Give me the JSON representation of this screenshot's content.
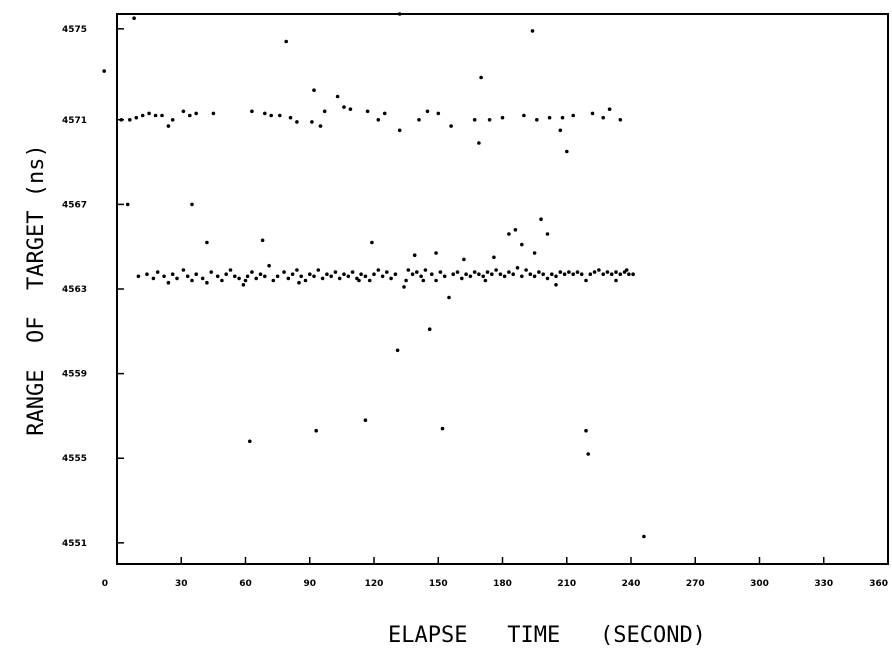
{
  "chart_data": {
    "type": "scatter",
    "title": "",
    "xlabel": "ELAPSE   TIME   (SECOND)",
    "ylabel": "RANGE  OF  TARGET (ns)",
    "xlim": [
      0,
      360
    ],
    "ylim": [
      4550,
      4576
    ],
    "grid": false,
    "x_ticks": [
      0,
      30,
      60,
      90,
      120,
      150,
      180,
      210,
      240,
      270,
      300,
      330,
      360
    ],
    "x_tick_labels": [
      "0",
      "30",
      "60",
      "90",
      "120",
      "150",
      "180",
      "210",
      "240",
      "270",
      "300",
      "330",
      "360"
    ],
    "y_ticks": [
      4575.3,
      4571,
      4567,
      4563,
      4559,
      4555,
      4551
    ],
    "y_tick_labels": [
      "4575",
      "4571",
      "4567",
      "4563",
      "4559",
      "4555",
      "4551"
    ],
    "series": [
      {
        "values": [
          [
            -6,
            4573.3
          ],
          [
            8,
            4575.8
          ],
          [
            31,
            4571.4
          ],
          [
            79,
            4574.7
          ],
          [
            92,
            4572.4
          ],
          [
            103,
            4572.1
          ],
          [
            132,
            4576.0
          ],
          [
            170,
            4573.0
          ],
          [
            194,
            4575.2
          ],
          [
            2,
            4571.0
          ],
          [
            6,
            4571.0
          ],
          [
            9,
            4571.1
          ],
          [
            12,
            4571.2
          ],
          [
            15,
            4571.3
          ],
          [
            18,
            4571.2
          ],
          [
            21,
            4571.2
          ],
          [
            24,
            4570.7
          ],
          [
            26,
            4571.0
          ],
          [
            34,
            4571.2
          ],
          [
            37,
            4571.3
          ],
          [
            45,
            4571.3
          ],
          [
            63,
            4571.4
          ],
          [
            69,
            4571.3
          ],
          [
            72,
            4571.2
          ],
          [
            76,
            4571.2
          ],
          [
            81,
            4571.1
          ],
          [
            84,
            4570.9
          ],
          [
            91,
            4570.9
          ],
          [
            95,
            4570.7
          ],
          [
            97,
            4571.4
          ],
          [
            106,
            4571.6
          ],
          [
            109,
            4571.5
          ],
          [
            117,
            4571.4
          ],
          [
            122,
            4571.0
          ],
          [
            125,
            4571.3
          ],
          [
            132,
            4570.5
          ],
          [
            141,
            4571.0
          ],
          [
            145,
            4571.4
          ],
          [
            150,
            4571.3
          ],
          [
            156,
            4570.7
          ],
          [
            167,
            4571.0
          ],
          [
            169,
            4569.9
          ],
          [
            174,
            4571.0
          ],
          [
            180,
            4571.1
          ],
          [
            190,
            4571.2
          ],
          [
            196,
            4571.0
          ],
          [
            202,
            4571.1
          ],
          [
            208,
            4571.1
          ],
          [
            213,
            4571.2
          ],
          [
            222,
            4571.3
          ],
          [
            227,
            4571.1
          ],
          [
            230,
            4571.5
          ],
          [
            235,
            4571.0
          ],
          [
            207,
            4570.5
          ],
          [
            210,
            4569.5
          ],
          [
            5,
            4567.0
          ],
          [
            35,
            4567.0
          ],
          [
            42,
            4565.2
          ],
          [
            68,
            4565.3
          ],
          [
            119,
            4565.2
          ],
          [
            139,
            4564.6
          ],
          [
            149,
            4564.7
          ],
          [
            162,
            4564.4
          ],
          [
            176,
            4564.5
          ],
          [
            183,
            4565.6
          ],
          [
            186,
            4565.8
          ],
          [
            189,
            4565.1
          ],
          [
            195,
            4564.7
          ],
          [
            198,
            4566.3
          ],
          [
            201,
            4565.6
          ],
          [
            135,
            4563.4
          ],
          [
            155,
            4562.6
          ],
          [
            146,
            4561.1
          ],
          [
            131,
            4560.1
          ],
          [
            62,
            4555.8
          ],
          [
            93,
            4556.3
          ],
          [
            116,
            4556.8
          ],
          [
            152,
            4556.4
          ],
          [
            219,
            4556.3
          ],
          [
            220,
            4555.2
          ],
          [
            246,
            4551.3
          ]
        ]
      },
      {
        "values": [
          [
            10,
            4563.6
          ],
          [
            14,
            4563.7
          ],
          [
            17,
            4563.5
          ],
          [
            19,
            4563.8
          ],
          [
            22,
            4563.6
          ],
          [
            24,
            4563.3
          ],
          [
            26,
            4563.7
          ],
          [
            28,
            4563.5
          ],
          [
            31,
            4563.9
          ],
          [
            33,
            4563.6
          ],
          [
            35,
            4563.4
          ],
          [
            37,
            4563.7
          ],
          [
            40,
            4563.5
          ],
          [
            42,
            4563.3
          ],
          [
            44,
            4563.8
          ],
          [
            47,
            4563.6
          ],
          [
            49,
            4563.4
          ],
          [
            51,
            4563.7
          ],
          [
            53,
            4563.9
          ],
          [
            55,
            4563.6
          ],
          [
            57,
            4563.5
          ],
          [
            59,
            4563.2
          ],
          [
            61,
            4563.6
          ],
          [
            63,
            4563.8
          ],
          [
            65,
            4563.5
          ],
          [
            67,
            4563.7
          ],
          [
            69,
            4563.6
          ],
          [
            71,
            4564.1
          ],
          [
            73,
            4563.4
          ],
          [
            75,
            4563.6
          ],
          [
            78,
            4563.8
          ],
          [
            80,
            4563.5
          ],
          [
            82,
            4563.7
          ],
          [
            84,
            4563.9
          ],
          [
            86,
            4563.6
          ],
          [
            88,
            4563.4
          ],
          [
            90,
            4563.7
          ],
          [
            92,
            4563.6
          ],
          [
            94,
            4563.9
          ],
          [
            96,
            4563.5
          ],
          [
            98,
            4563.7
          ],
          [
            100,
            4563.6
          ],
          [
            102,
            4563.8
          ],
          [
            104,
            4563.5
          ],
          [
            106,
            4563.7
          ],
          [
            108,
            4563.6
          ],
          [
            110,
            4563.8
          ],
          [
            112,
            4563.5
          ],
          [
            114,
            4563.7
          ],
          [
            116,
            4563.6
          ],
          [
            118,
            4563.4
          ],
          [
            120,
            4563.7
          ],
          [
            122,
            4563.9
          ],
          [
            124,
            4563.6
          ],
          [
            126,
            4563.8
          ],
          [
            128,
            4563.5
          ],
          [
            130,
            4563.7
          ],
          [
            134,
            4563.1
          ],
          [
            136,
            4563.9
          ],
          [
            138,
            4563.7
          ],
          [
            140,
            4563.8
          ],
          [
            142,
            4563.6
          ],
          [
            144,
            4563.9
          ],
          [
            147,
            4563.7
          ],
          [
            149,
            4563.4
          ],
          [
            151,
            4563.8
          ],
          [
            153,
            4563.6
          ],
          [
            157,
            4563.7
          ],
          [
            159,
            4563.8
          ],
          [
            161,
            4563.5
          ],
          [
            163,
            4563.7
          ],
          [
            165,
            4563.6
          ],
          [
            167,
            4563.8
          ],
          [
            169,
            4563.7
          ],
          [
            171,
            4563.6
          ],
          [
            173,
            4563.8
          ],
          [
            175,
            4563.7
          ],
          [
            177,
            4563.9
          ],
          [
            179,
            4563.7
          ],
          [
            181,
            4563.6
          ],
          [
            183,
            4563.8
          ],
          [
            185,
            4563.7
          ],
          [
            187,
            4564.0
          ],
          [
            189,
            4563.6
          ],
          [
            191,
            4563.9
          ],
          [
            193,
            4563.7
          ],
          [
            195,
            4563.6
          ],
          [
            197,
            4563.8
          ],
          [
            199,
            4563.7
          ],
          [
            201,
            4563.5
          ],
          [
            203,
            4563.7
          ],
          [
            205,
            4563.6
          ],
          [
            207,
            4563.8
          ],
          [
            209,
            4563.7
          ],
          [
            211,
            4563.8
          ],
          [
            213,
            4563.7
          ],
          [
            215,
            4563.8
          ],
          [
            217,
            4563.7
          ],
          [
            221,
            4563.7
          ],
          [
            223,
            4563.8
          ],
          [
            225,
            4563.9
          ],
          [
            227,
            4563.7
          ],
          [
            229,
            4563.8
          ],
          [
            231,
            4563.7
          ],
          [
            233,
            4563.8
          ],
          [
            235,
            4563.7
          ],
          [
            237,
            4563.8
          ],
          [
            239,
            4563.7
          ],
          [
            241,
            4563.7
          ],
          [
            205,
            4563.2
          ],
          [
            60,
            4563.4
          ],
          [
            85,
            4563.3
          ],
          [
            113,
            4563.4
          ],
          [
            143,
            4563.4
          ],
          [
            172,
            4563.4
          ],
          [
            219,
            4563.4
          ],
          [
            233,
            4563.4
          ],
          [
            238,
            4563.9
          ]
        ]
      }
    ]
  }
}
